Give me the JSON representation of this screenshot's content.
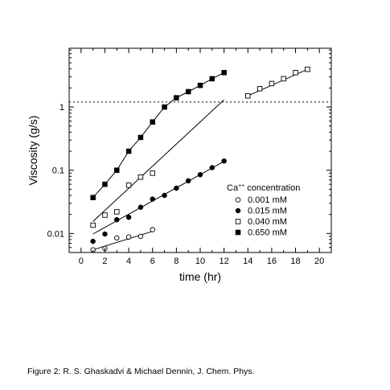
{
  "chart_data": {
    "type": "scatter",
    "xlabel": "time (hr)",
    "ylabel": "Viscosity (g/s)",
    "x_ticks": [
      0,
      2,
      4,
      6,
      8,
      10,
      12,
      14,
      16,
      18,
      20
    ],
    "x_minor_ticks": [
      1,
      3,
      5,
      7,
      9,
      11,
      13,
      15,
      17,
      19
    ],
    "xlim": [
      -1,
      21
    ],
    "y_scale": "log",
    "y_ticks": [
      0.01,
      0.1,
      1
    ],
    "y_tick_labels": [
      "0.01",
      "0.1",
      "1"
    ],
    "ylim": [
      0.005,
      8.5
    ],
    "grid": false,
    "legend": {
      "title_base": "Ca",
      "title_sup": "++",
      "title_rest": " concentration",
      "placement": "right"
    },
    "series": [
      {
        "name": "0.001 mM",
        "marker": "open-circle",
        "x": [
          1,
          2,
          3,
          4,
          5,
          6
        ],
        "y": [
          0.0055,
          0.0058,
          0.0085,
          0.0088,
          0.009,
          0.0115
        ],
        "fit": [
          [
            1,
            0.0055
          ],
          [
            6,
            0.0108
          ]
        ]
      },
      {
        "name": "0.015 mM",
        "marker": "filled-circle",
        "x": [
          1,
          2,
          3,
          4,
          5,
          6,
          7,
          8,
          9,
          10,
          11,
          12
        ],
        "y": [
          0.0075,
          0.0098,
          0.0165,
          0.018,
          0.026,
          0.035,
          0.04,
          0.052,
          0.068,
          0.085,
          0.11,
          0.14
        ],
        "fit": [
          [
            1,
            0.0098
          ],
          [
            12,
            0.138
          ]
        ]
      },
      {
        "name": "0.040 mM",
        "marker": "open-square",
        "x": [
          1,
          2,
          3,
          4,
          5,
          6,
          14,
          15,
          16,
          17,
          18,
          19
        ],
        "y": [
          0.0135,
          0.0195,
          0.022,
          0.058,
          0.078,
          0.09,
          1.5,
          1.95,
          2.35,
          2.8,
          3.5,
          3.95
        ],
        "fit": [
          [
            1,
            0.0155
          ],
          [
            12,
            1.3
          ]
        ],
        "fit2": [
          [
            14,
            1.5
          ],
          [
            19,
            3.95
          ]
        ]
      },
      {
        "name": "0.650 mM",
        "marker": "filled-square",
        "x": [
          1,
          2,
          3,
          4,
          5,
          6,
          7,
          8,
          9,
          10,
          11,
          12
        ],
        "y": [
          0.037,
          0.06,
          0.1,
          0.2,
          0.33,
          0.58,
          1.0,
          1.4,
          1.75,
          2.2,
          2.8,
          3.5
        ],
        "fit": [
          [
            1,
            0.037
          ],
          [
            2,
            0.06
          ],
          [
            3,
            0.1
          ],
          [
            4,
            0.2
          ],
          [
            5,
            0.33
          ],
          [
            6,
            0.58
          ],
          [
            7,
            1.0
          ],
          [
            8,
            1.4
          ],
          [
            9,
            1.75
          ],
          [
            10,
            2.2
          ],
          [
            11,
            2.8
          ],
          [
            12,
            3.5
          ]
        ]
      }
    ],
    "reference_line": {
      "y": 1.2,
      "style": "dotted"
    }
  },
  "caption": "Figure 2: R. S. Ghaskadvi & Michael Dennin, J. Chem. Phys."
}
